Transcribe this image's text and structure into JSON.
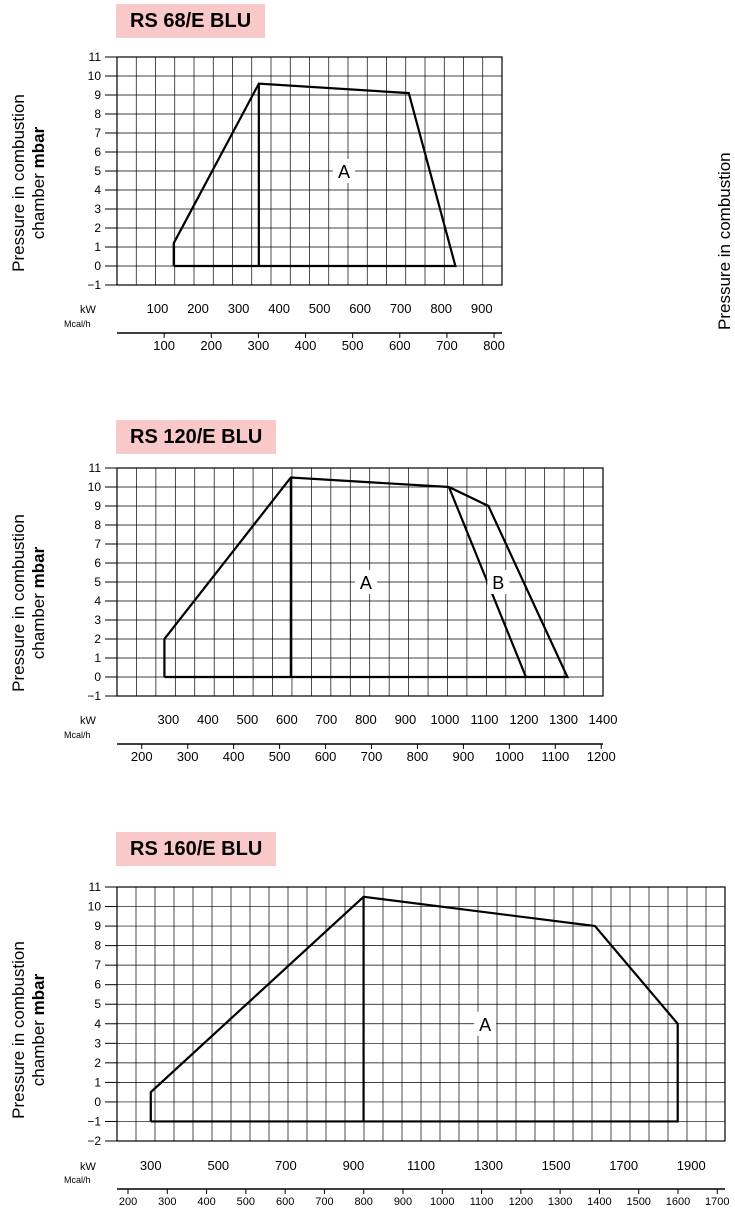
{
  "ylabel_line1": "Pressure in combustion",
  "ylabel_line2_prefix": "chamber ",
  "ylabel_line2_bold": "mbar",
  "edge_label": "Pressure in combustion",
  "unit_kw": "kW",
  "unit_mcal": "Mcal/h",
  "chart_data": [
    {
      "type": "area",
      "title": "RS 68/E BLU",
      "ylim": [
        -1,
        11
      ],
      "y_ticks": [
        "11",
        "10",
        "9",
        "8",
        "7",
        "6",
        "5",
        "4",
        "3",
        "2",
        "1",
        "0",
        "−1"
      ],
      "x_kw_ticks": [
        "100",
        "200",
        "300",
        "400",
        "500",
        "600",
        "700",
        "800",
        "900"
      ],
      "x_kw_values": [
        100,
        200,
        300,
        400,
        500,
        600,
        700,
        800,
        900
      ],
      "x_kw_range": [
        0,
        950
      ],
      "x_mcal_ticks": [
        "100",
        "200",
        "300",
        "400",
        "500",
        "600",
        "700",
        "800"
      ],
      "x_mcal_values": [
        100,
        200,
        300,
        400,
        500,
        600,
        700,
        800
      ],
      "regions": [
        {
          "label": "A",
          "label_at": [
            560,
            5
          ]
        }
      ],
      "envelope": [
        [
          140,
          0
        ],
        [
          140,
          1.2
        ],
        [
          350,
          9.6
        ],
        [
          720,
          9.1
        ],
        [
          835,
          0
        ],
        [
          140,
          0
        ]
      ],
      "divider": [
        [
          350,
          0
        ],
        [
          350,
          9.6
        ]
      ],
      "grid": true
    },
    {
      "type": "area",
      "title": "RS 120/E BLU",
      "ylim": [
        -1,
        11
      ],
      "y_ticks": [
        "11",
        "10",
        "9",
        "8",
        "7",
        "6",
        "5",
        "4",
        "3",
        "2",
        "1",
        "0",
        "−1"
      ],
      "x_kw_ticks": [
        "300",
        "400",
        "500",
        "600",
        "700",
        "800",
        "900",
        "1000",
        "1100",
        "1200",
        "1300",
        "1400"
      ],
      "x_kw_values": [
        300,
        400,
        500,
        600,
        700,
        800,
        900,
        1000,
        1100,
        1200,
        1300,
        1400
      ],
      "x_kw_range": [
        170,
        1400
      ],
      "x_mcal_ticks": [
        "200",
        "300",
        "400",
        "500",
        "600",
        "700",
        "800",
        "900",
        "1000",
        "1100",
        "1200"
      ],
      "x_mcal_values": [
        200,
        300,
        400,
        500,
        600,
        700,
        800,
        900,
        1000,
        1100,
        1200
      ],
      "regions": [
        {
          "label": "A",
          "label_at": [
            800,
            5
          ]
        },
        {
          "label": "B",
          "label_at": [
            1135,
            5
          ]
        }
      ],
      "envelope": [
        [
          290,
          0
        ],
        [
          290,
          2
        ],
        [
          610,
          10.5
        ],
        [
          1010,
          10
        ],
        [
          1110,
          9
        ],
        [
          1310,
          0
        ],
        [
          290,
          0
        ]
      ],
      "divider": [
        [
          610,
          0
        ],
        [
          610,
          10.5
        ]
      ],
      "boundary_A": [
        [
          1010,
          10
        ],
        [
          1205,
          0
        ]
      ],
      "grid": true
    },
    {
      "type": "area",
      "title": "RS 160/E BLU",
      "ylim": [
        -2,
        11
      ],
      "y_ticks": [
        "11",
        "10",
        "9",
        "8",
        "7",
        "6",
        "5",
        "4",
        "3",
        "2",
        "1",
        "0",
        "−1",
        "−2"
      ],
      "x_kw_ticks": [
        "300",
        "500",
        "700",
        "900",
        "1100",
        "1300",
        "1500",
        "1700",
        "1900"
      ],
      "x_kw_values": [
        300,
        500,
        700,
        900,
        1100,
        1300,
        1500,
        1700,
        1900
      ],
      "x_kw_range": [
        200,
        2000
      ],
      "x_mcal_ticks": [
        "200",
        "300",
        "400",
        "500",
        "600",
        "700",
        "800",
        "900",
        "1000",
        "1100",
        "1200",
        "1300",
        "1400",
        "1500",
        "1600",
        "1700"
      ],
      "x_mcal_values": [
        200,
        300,
        400,
        500,
        600,
        700,
        800,
        900,
        1000,
        1100,
        1200,
        1300,
        1400,
        1500,
        1600,
        1700
      ],
      "regions": [
        {
          "label": "A",
          "label_at": [
            1290,
            4
          ]
        }
      ],
      "envelope": [
        [
          300,
          -1
        ],
        [
          300,
          0.5
        ],
        [
          930,
          10.5
        ],
        [
          1615,
          9
        ],
        [
          1860,
          4
        ],
        [
          1860,
          -1
        ],
        [
          300,
          -1
        ]
      ],
      "divider": [
        [
          930,
          -1
        ],
        [
          930,
          10.5
        ]
      ],
      "grid": true
    }
  ]
}
